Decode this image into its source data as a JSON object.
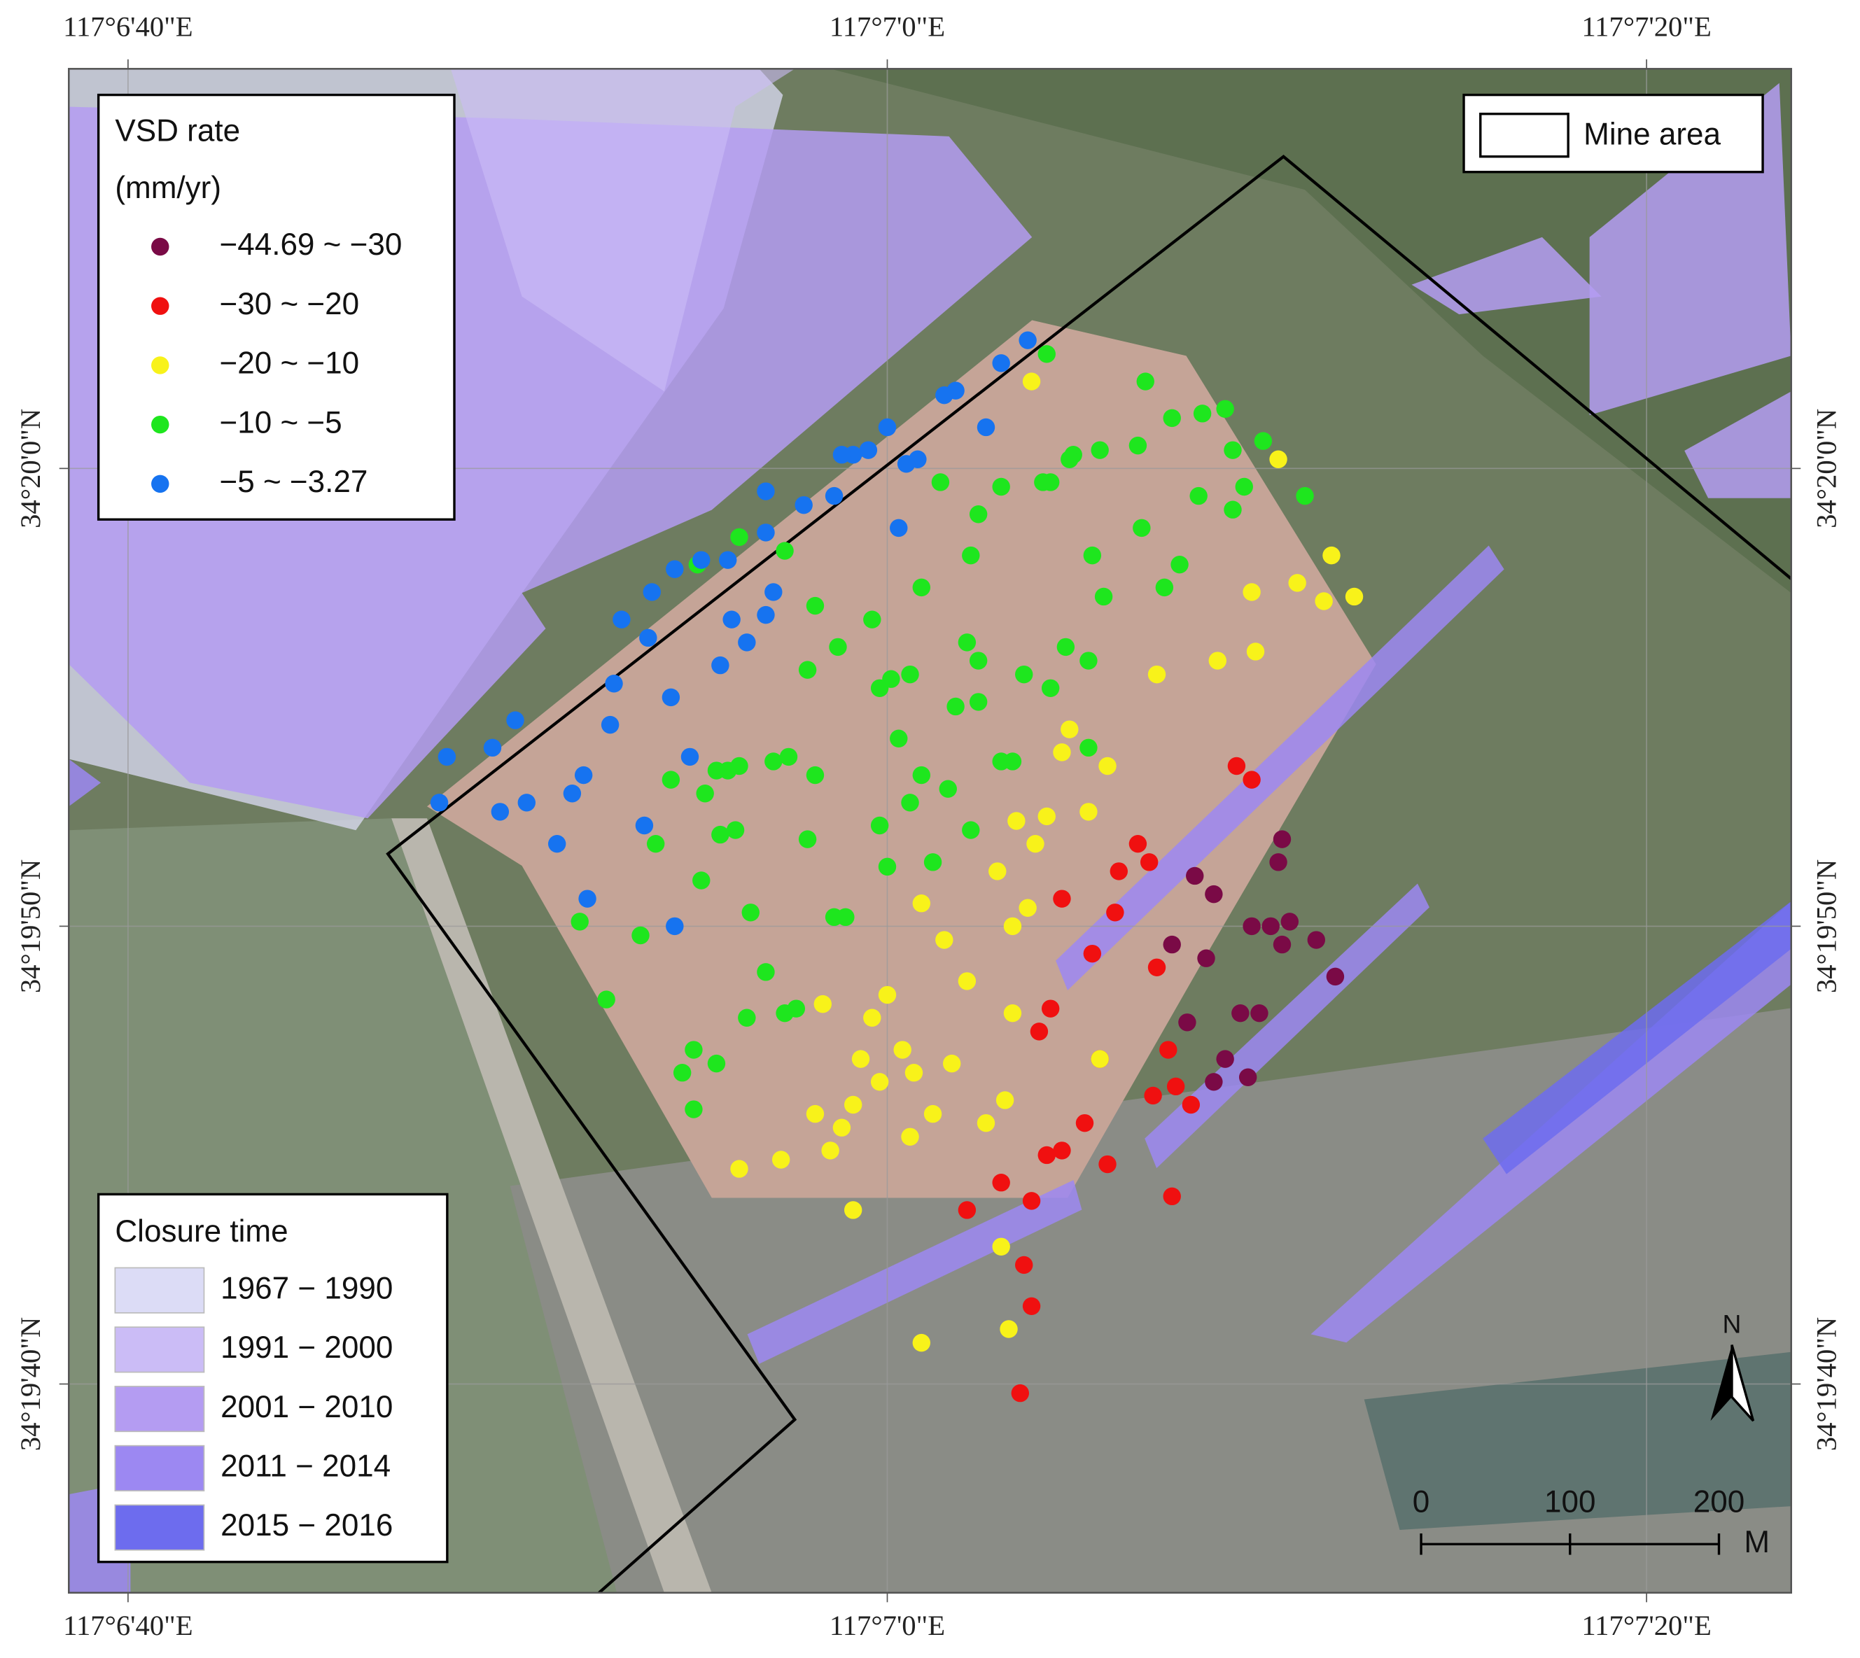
{
  "map": {
    "xlim": [
      38.44,
      83.81
    ],
    "ylim": [
      35.44,
      68.73
    ],
    "xticks": [
      {
        "value": 40,
        "label": "117°6'40\"E"
      },
      {
        "value": 60,
        "label": "117°7'0\"E"
      },
      {
        "value": 80,
        "label": "117°7'20\"E"
      }
    ],
    "yticks": [
      {
        "value": 40,
        "label": "34°19'40\"N"
      },
      {
        "value": 50,
        "label": "34°19'50\"N"
      },
      {
        "value": 60,
        "label": "34°20'0\"N"
      }
    ],
    "grid": true,
    "vsd_legend": {
      "title": "VSD rate",
      "unit": "(mm/yr)"
    },
    "series": [
      {
        "name": "−44.69 ~ −30",
        "color": "#7a0a46",
        "x": [
          70.4,
          68.1,
          68.6,
          70.3,
          69.6,
          70.1,
          70.6,
          70.4,
          71.3,
          67.5,
          68.4,
          71.8,
          67.9,
          69.3,
          69.8,
          68.9,
          68.6,
          69.5
        ],
        "y": [
          51.9,
          51.1,
          50.7,
          51.4,
          50.0,
          50.0,
          50.1,
          49.6,
          49.7,
          49.6,
          49.3,
          48.9,
          47.9,
          48.1,
          48.1,
          47.1,
          46.6,
          46.7
        ]
      },
      {
        "name": "−30 ~ −20",
        "color": "#f01010",
        "x": [
          69.2,
          69.6,
          66.6,
          66.1,
          66.9,
          64.6,
          66.0,
          65.4,
          67.1,
          64.3,
          64.0,
          65.6,
          67.4,
          67.0,
          67.6,
          68.0,
          65.2,
          64.6,
          64.2,
          65.8,
          67.5,
          63.0,
          63.8,
          62.1,
          63.6,
          63.8,
          63.5
        ],
        "y": [
          53.5,
          53.2,
          51.8,
          51.2,
          51.4,
          50.6,
          50.3,
          49.4,
          49.1,
          48.2,
          47.7,
          47.1,
          47.3,
          46.3,
          46.5,
          46.1,
          45.7,
          45.1,
          45.0,
          44.8,
          44.1,
          44.4,
          44.0,
          43.8,
          42.6,
          41.7,
          39.8
        ]
      },
      {
        "name": "−20 ~ −10",
        "color": "#f8f21a",
        "x": [
          63.8,
          70.3,
          71.7,
          70.8,
          69.6,
          71.5,
          72.3,
          69.7,
          68.7,
          67.1,
          64.8,
          64.6,
          65.3,
          65.8,
          63.4,
          64.2,
          63.9,
          65.3,
          62.9,
          60.9,
          63.7,
          63.3,
          61.5,
          62.1,
          63.3,
          60.0,
          59.6,
          58.3,
          60.4,
          59.3,
          59.8,
          60.7,
          61.7,
          63.1,
          65.6,
          58.1,
          59.1,
          58.8,
          61.2,
          62.6,
          60.6,
          58.5,
          57.2,
          56.1,
          59.1,
          63.0,
          63.2,
          60.9
        ],
        "y": [
          61.9,
          60.2,
          58.1,
          57.5,
          57.3,
          57.1,
          57.2,
          56.0,
          55.8,
          55.5,
          54.3,
          53.8,
          53.9,
          53.5,
          52.3,
          52.4,
          51.8,
          52.5,
          51.2,
          50.5,
          50.4,
          50.0,
          49.7,
          48.8,
          48.1,
          48.5,
          48.0,
          48.3,
          47.3,
          47.1,
          46.6,
          46.8,
          47.0,
          46.2,
          47.1,
          45.9,
          46.1,
          45.6,
          45.9,
          45.7,
          45.4,
          45.1,
          44.9,
          44.7,
          43.8,
          43.0,
          41.2,
          40.9
        ]
      },
      {
        "name": "−10 ~ −5",
        "color": "#1ee61e",
        "x": [
          64.2,
          66.8,
          68.9,
          68.3,
          67.5,
          69.9,
          69.1,
          66.6,
          65.6,
          64.9,
          64.8,
          64.3,
          64.1,
          63.0,
          61.4,
          69.4,
          71.0,
          68.2,
          69.1,
          66.7,
          62.4,
          55.0,
          56.1,
          57.3,
          62.2,
          65.4,
          67.7,
          67.3,
          65.7,
          60.9,
          58.1,
          59.6,
          62.1,
          64.7,
          58.7,
          62.4,
          65.3,
          60.1,
          60.6,
          57.9,
          63.6,
          64.3,
          61.8,
          62.4,
          60.3,
          63.3,
          63.0,
          65.3,
          57.4,
          57.0,
          55.5,
          56.1,
          55.8,
          58.1,
          60.9,
          61.6,
          54.3,
          55.2,
          60.6,
          62.2,
          56.0,
          55.6,
          57.9,
          53.9,
          59.8,
          61.2,
          60.0,
          55.1,
          56.4,
          51.9,
          53.5,
          58.6,
          58.9,
          56.8,
          56.3,
          57.3,
          57.6,
          52.6,
          54.9,
          55.5,
          54.6,
          54.9,
          59.8
        ],
        "y": [
          62.5,
          61.9,
          61.3,
          61.2,
          61.1,
          60.6,
          60.4,
          60.5,
          60.4,
          60.3,
          60.2,
          59.7,
          59.7,
          59.6,
          59.7,
          59.6,
          59.4,
          59.4,
          59.1,
          58.7,
          59.0,
          57.9,
          58.5,
          58.2,
          58.1,
          58.1,
          57.9,
          57.4,
          57.2,
          57.4,
          57.0,
          56.7,
          56.2,
          56.1,
          56.1,
          55.8,
          55.8,
          55.4,
          55.5,
          55.6,
          55.5,
          55.2,
          54.8,
          54.9,
          54.1,
          53.6,
          53.6,
          53.9,
          53.7,
          53.6,
          53.4,
          53.5,
          53.4,
          53.3,
          53.3,
          53.0,
          53.2,
          52.9,
          52.7,
          52.1,
          52.1,
          52.0,
          51.9,
          51.8,
          52.2,
          51.4,
          51.3,
          51.0,
          50.3,
          50.1,
          49.8,
          50.2,
          50.2,
          49.0,
          48.0,
          48.1,
          48.2,
          48.4,
          47.3,
          47.0,
          46.8,
          46.0,
          55.2
        ]
      },
      {
        "name": "−5 ~ −3.27",
        "color": "#1673f0",
        "x": [
          63.7,
          63.0,
          61.8,
          61.5,
          62.6,
          60.0,
          59.5,
          59.1,
          58.8,
          60.8,
          60.5,
          58.6,
          57.8,
          56.8,
          60.3,
          56.8,
          55.8,
          55.1,
          54.4,
          53.8,
          57.0,
          56.8,
          55.9,
          53.0,
          53.7,
          56.3,
          55.6,
          52.8,
          54.3,
          52.7,
          50.2,
          49.6,
          48.4,
          52.0,
          51.7,
          54.8,
          50.5,
          49.8,
          48.2,
          53.6,
          51.3,
          52.1,
          54.4
        ],
        "y": [
          62.8,
          62.3,
          61.7,
          61.6,
          60.9,
          60.9,
          60.4,
          60.3,
          60.3,
          60.2,
          60.1,
          59.4,
          59.2,
          59.5,
          58.7,
          58.6,
          58.0,
          58.0,
          57.8,
          57.3,
          57.3,
          56.8,
          56.7,
          56.7,
          56.3,
          56.2,
          55.7,
          55.3,
          55.0,
          54.4,
          54.5,
          53.9,
          53.7,
          53.3,
          52.9,
          53.7,
          52.7,
          52.5,
          52.7,
          52.2,
          51.8,
          50.6,
          50.0
        ]
      }
    ],
    "closure_legend": {
      "title": "Closure time",
      "entries": [
        {
          "name": "1967 − 1990",
          "color": "#dcdcf6"
        },
        {
          "name": "1991 − 2000",
          "color": "#cbbcf6"
        },
        {
          "name": "2001 − 2010",
          "color": "#b49cf2"
        },
        {
          "name": "2011 − 2014",
          "color": "#9c88f2"
        },
        {
          "name": "2015 − 2016",
          "color": "#6d6cee"
        }
      ]
    },
    "mine_area_label": "Mine area",
    "north_label": "N",
    "scale_bar": {
      "ticks": [
        0,
        100,
        200
      ],
      "unit": "M"
    }
  }
}
